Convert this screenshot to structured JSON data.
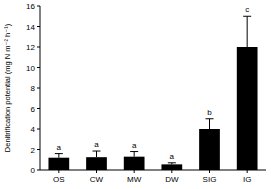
{
  "chart_data": {
    "type": "bar",
    "y_label": "Denitrification potential (mg N m⁻² h⁻¹)",
    "categories": [
      "OS",
      "CW",
      "MW",
      "DW",
      "SIG",
      "IG"
    ],
    "values": [
      1.2,
      1.25,
      1.3,
      0.55,
      4.0,
      12.0
    ],
    "errors": [
      0.4,
      0.6,
      0.5,
      0.15,
      1.0,
      3.0
    ],
    "annotations": [
      "a",
      "a",
      "a",
      "a",
      "b",
      "c"
    ],
    "color": "#000000",
    "ylim": [
      0,
      16
    ],
    "yticks": [
      0,
      2,
      4,
      6,
      8,
      10,
      12,
      14,
      16
    ],
    "grid": false
  }
}
